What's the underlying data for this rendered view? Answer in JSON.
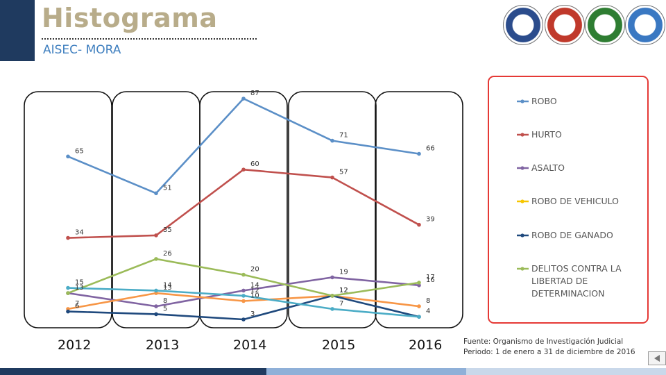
{
  "header": {
    "title": "Histograma",
    "subtitle": "AISEC- MORA"
  },
  "footer": {
    "line1": "Fuente: Organismo de Investigación Judicial",
    "line2": "Periodo: 1 de enero a 31 de diciembre de 2016"
  },
  "logos": [
    {
      "name": "us-seal-logo",
      "color": "#2b4c8c"
    },
    {
      "name": "fuerza-publica-logo",
      "color": "#c0392b"
    },
    {
      "name": "policia-logo",
      "color": "#2e7d32"
    },
    {
      "name": "map-emblem-logo",
      "color": "#3a78c2"
    }
  ],
  "chart_data": {
    "type": "line",
    "categories": [
      "2012",
      "2013",
      "2014",
      "2015",
      "2016"
    ],
    "ylim": [
      0,
      95
    ],
    "series": [
      {
        "name": "ROBO",
        "color": "#5b8fc7",
        "values": [
          65,
          51,
          87,
          71,
          66
        ],
        "labels": [
          "65",
          "51",
          "87",
          "71",
          "66"
        ]
      },
      {
        "name": "HURTO",
        "color": "#c0504d",
        "values": [
          34,
          35,
          60,
          57,
          39
        ],
        "labels": [
          "34",
          "35",
          "60",
          "57",
          "39"
        ]
      },
      {
        "name": "ASALTO",
        "color": "#8064a2",
        "values": [
          13,
          8,
          14,
          19,
          16
        ],
        "labels": [
          "13",
          "8",
          "14",
          "19",
          "16"
        ]
      },
      {
        "name": "ROBO DE VEHICULO",
        "color": "#f79646",
        "values": [
          7,
          13,
          10,
          12,
          8
        ],
        "labels": [
          "7",
          "13",
          "10",
          "12",
          "8"
        ]
      },
      {
        "name": "ROBO DE GANADO",
        "color": "#1f497d",
        "values": [
          6,
          5,
          3,
          12,
          4
        ],
        "labels": [
          "6",
          "5",
          "3",
          "12",
          "4"
        ]
      },
      {
        "name": "DELITOS CONTRA LA LIBERTAD DE DETERMINACION",
        "color": "#9bbb59",
        "values": [
          13,
          26,
          20,
          12,
          17
        ],
        "labels": [
          "",
          "26",
          "20",
          "",
          "17"
        ]
      },
      {
        "name": "",
        "color": "#4bacc6",
        "values": [
          15,
          14,
          12,
          7,
          4
        ],
        "labels": [
          "15",
          "14",
          "12",
          "7",
          ""
        ]
      }
    ],
    "legend": {
      "position": "right",
      "entries": [
        {
          "label": "ROBO",
          "color": "#5b8fc7"
        },
        {
          "label": "HURTO",
          "color": "#c0504d"
        },
        {
          "label": "ASALTO",
          "color": "#8064a2"
        },
        {
          "label": "ROBO DE VEHICULO",
          "color": "#f7c600"
        },
        {
          "label": "ROBO DE GANADO",
          "color": "#1f497d"
        },
        {
          "label_lines": [
            "DELITOS CONTRA LA",
            "LIBERTAD DE",
            "DETERMINACION"
          ],
          "color": "#9bbb59"
        }
      ]
    }
  }
}
